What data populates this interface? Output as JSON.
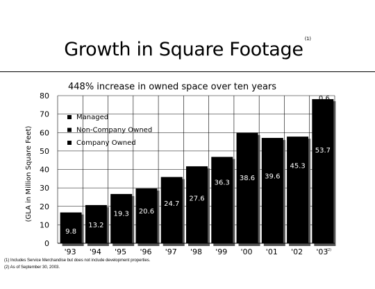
{
  "header": {
    "title": "Growth in Square Footage",
    "title_note": "(1)"
  },
  "chart_data": {
    "type": "bar",
    "title": "448% increase in owned space over ten years",
    "ylabel": "(GLA in Million Square Feet)",
    "xlabel": "",
    "ylim": [
      0,
      80
    ],
    "yticks": [
      "0",
      "10",
      "20",
      "30",
      "40",
      "50",
      "60",
      "70",
      "80"
    ],
    "categories": [
      "'93",
      "'94",
      "'95",
      "'96",
      "'97",
      "'98",
      "'99",
      "'00",
      "'01",
      "'02",
      "'03"
    ],
    "last_category_note": "(2)",
    "legend": [
      "Managed",
      "Non-Company Owned",
      "Company Owned"
    ],
    "legend_position": "top-left",
    "grid": true,
    "series": [
      {
        "name": "Company Owned",
        "values": [
          9.8,
          13.2,
          19.3,
          20.6,
          24.7,
          27.6,
          36.3,
          38.6,
          39.6,
          45.3,
          53.7
        ]
      }
    ],
    "bar_totals": [
      16.7,
      20.7,
      26.7,
      29.7,
      35.9,
      41.7,
      46.8,
      59.8,
      57.1,
      57.8,
      78.1
    ],
    "top_segment_labels": [
      "",
      "",
      "",
      "",
      "",
      "",
      "",
      "",
      "",
      "",
      "0.6"
    ],
    "colors": {
      "bars": "#000000",
      "bar_text": "#ffffff",
      "grid": "#000000"
    }
  },
  "footnotes": [
    "(1) Includes Service Merchandise but does not include development properties.",
    "(2) As of September 30, 2003."
  ]
}
